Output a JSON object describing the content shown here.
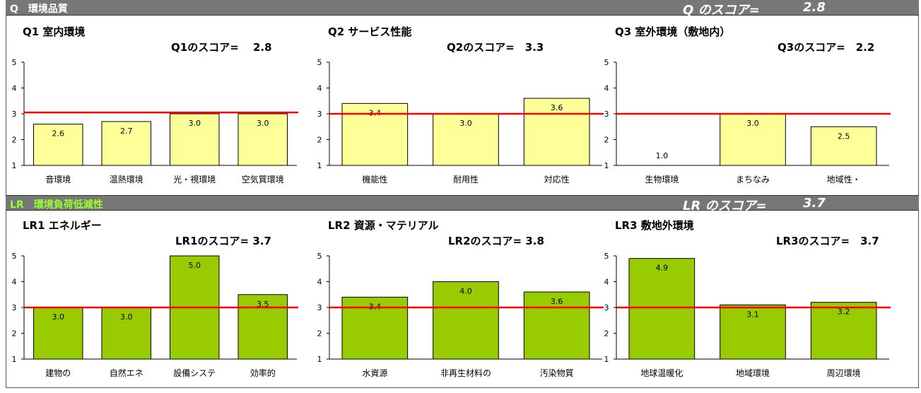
{
  "sections": {
    "q": {
      "label": "Q　環境品質",
      "label_color": "#ffffff",
      "score_title": "Q のスコア=",
      "score_value": "2.8"
    },
    "lr": {
      "label": "LR　環境負荷低減性",
      "label_color": "#99ff33",
      "score_title": "LR のスコア=",
      "score_value": "3.7"
    }
  },
  "colors": {
    "q_bar_fill": "#ffff99",
    "lr_bar_fill": "#99cc00",
    "reference_line": "#ff0000",
    "section_bar": "#777777"
  },
  "chart_data": [
    {
      "type": "bar",
      "title": "Q1 室内環境",
      "score_text": "Q1のスコア=　 2.8",
      "categories": [
        "音環境",
        "温熱環境",
        "光・視環境",
        "空気質環境"
      ],
      "values": [
        2.6,
        2.7,
        3.0,
        3.0
      ],
      "value_labels": [
        "2.6",
        "2.7",
        "3.0",
        "3.0"
      ],
      "ylim": [
        1,
        5
      ],
      "yticks": [
        "1",
        "2",
        "3",
        "4",
        "5"
      ],
      "reference_line": 3.05,
      "xlabel": "",
      "ylabel": ""
    },
    {
      "type": "bar",
      "title": "Q2 サービス性能",
      "score_text": "Q2のスコア=　3.3",
      "categories": [
        "機能性",
        "耐用性",
        "対応性"
      ],
      "values": [
        3.4,
        3.0,
        3.6
      ],
      "value_labels": [
        "3.4",
        "3.0",
        "3.6"
      ],
      "ylim": [
        1,
        5
      ],
      "yticks": [
        "1",
        "2",
        "3",
        "4",
        "5"
      ],
      "reference_line": 3.0,
      "xlabel": "",
      "ylabel": ""
    },
    {
      "type": "bar",
      "title": "Q3 室外環境（敷地内）",
      "score_text": "Q3のスコア=　2.2",
      "categories": [
        "生物環境",
        "まちなみ",
        "地域性・"
      ],
      "values": [
        1.0,
        3.0,
        2.5
      ],
      "value_labels": [
        "1.0",
        "3.0",
        "2.5"
      ],
      "ylim": [
        1,
        5
      ],
      "yticks": [
        "1",
        "2",
        "3",
        "4",
        "5"
      ],
      "reference_line": 3.0,
      "xlabel": "",
      "ylabel": ""
    },
    {
      "type": "bar",
      "title": "LR1 エネルギー",
      "score_text": "LR1のスコア= 3.7",
      "categories": [
        "建物の",
        "自然エネ",
        "設備システ",
        "効率的"
      ],
      "values": [
        3.0,
        3.0,
        5.0,
        3.5
      ],
      "value_labels": [
        "3.0",
        "3.0",
        "5.0",
        "3.5"
      ],
      "ylim": [
        1,
        5
      ],
      "yticks": [
        "1",
        "2",
        "3",
        "4",
        "5"
      ],
      "reference_line": 3.0,
      "xlabel": "",
      "ylabel": ""
    },
    {
      "type": "bar",
      "title": "LR2 資源・マテリアル",
      "score_text": "LR2のスコア= 3.8",
      "categories": [
        "水資源",
        "非再生材料の",
        "汚染物質"
      ],
      "values": [
        3.4,
        4.0,
        3.6
      ],
      "value_labels": [
        "3.4",
        "4.0",
        "3.6"
      ],
      "ylim": [
        1,
        5
      ],
      "yticks": [
        "1",
        "2",
        "3",
        "4",
        "5"
      ],
      "reference_line": 3.0,
      "xlabel": "",
      "ylabel": ""
    },
    {
      "type": "bar",
      "title": "LR3 敷地外環境",
      "score_text": "LR3のスコア=　3.7",
      "categories": [
        "地球温暖化",
        "地域環境",
        "周辺環境"
      ],
      "values": [
        4.9,
        3.1,
        3.2
      ],
      "value_labels": [
        "4.9",
        "3.1",
        "3.2"
      ],
      "ylim": [
        1,
        5
      ],
      "yticks": [
        "1",
        "2",
        "3",
        "4",
        "5"
      ],
      "reference_line": 3.0,
      "xlabel": "",
      "ylabel": ""
    }
  ]
}
